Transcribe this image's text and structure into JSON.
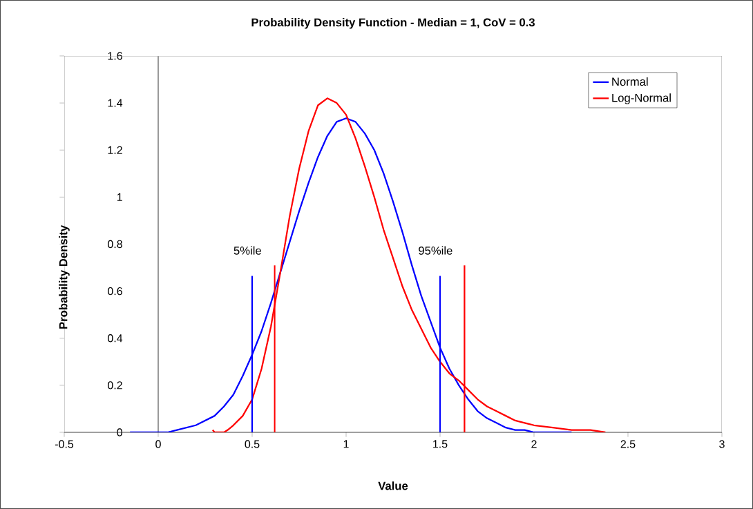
{
  "chart_data": {
    "type": "line",
    "title": "Probability Density Function - Median = 1, CoV = 0.3",
    "xlabel": "Value",
    "ylabel": "Probability Density",
    "xlim": [
      -0.5,
      3
    ],
    "xticks": [
      -0.5,
      0,
      0.5,
      1,
      1.5,
      2,
      2.5,
      3
    ],
    "ylim": [
      0,
      1.6
    ],
    "yticks": [
      0,
      0.2,
      0.4,
      0.6,
      0.8,
      1,
      1.2,
      1.4,
      1.6
    ],
    "legend": "top right",
    "series": [
      {
        "name": "Normal",
        "color": "#0000ff",
        "x": [
          -0.15,
          0.05,
          0.1,
          0.2,
          0.3,
          0.35,
          0.4,
          0.45,
          0.5,
          0.55,
          0.6,
          0.65,
          0.7,
          0.75,
          0.8,
          0.85,
          0.9,
          0.95,
          1.0,
          1.05,
          1.1,
          1.15,
          1.2,
          1.25,
          1.3,
          1.35,
          1.4,
          1.45,
          1.5,
          1.55,
          1.6,
          1.65,
          1.7,
          1.75,
          1.8,
          1.85,
          1.9,
          1.95,
          2.0,
          2.2
        ],
        "values": [
          0,
          0,
          0.01,
          0.03,
          0.07,
          0.11,
          0.16,
          0.24,
          0.33,
          0.43,
          0.55,
          0.68,
          0.81,
          0.94,
          1.06,
          1.17,
          1.26,
          1.32,
          1.335,
          1.32,
          1.27,
          1.2,
          1.1,
          0.98,
          0.85,
          0.71,
          0.58,
          0.47,
          0.36,
          0.27,
          0.2,
          0.14,
          0.09,
          0.06,
          0.04,
          0.02,
          0.01,
          0.01,
          0,
          0
        ]
      },
      {
        "name": "Log-Normal",
        "color": "#ff0000",
        "x": [
          0.29,
          0.3,
          0.35,
          0.37,
          0.4,
          0.45,
          0.5,
          0.55,
          0.6,
          0.65,
          0.7,
          0.75,
          0.8,
          0.85,
          0.9,
          0.95,
          1.0,
          1.05,
          1.1,
          1.15,
          1.2,
          1.25,
          1.3,
          1.35,
          1.4,
          1.45,
          1.5,
          1.55,
          1.6,
          1.65,
          1.7,
          1.75,
          1.8,
          1.85,
          1.9,
          1.95,
          2.0,
          2.1,
          2.2,
          2.3,
          2.38
        ],
        "values": [
          0.01,
          0,
          0,
          0.01,
          0.03,
          0.07,
          0.14,
          0.27,
          0.45,
          0.68,
          0.92,
          1.12,
          1.28,
          1.39,
          1.42,
          1.4,
          1.35,
          1.25,
          1.13,
          1.0,
          0.86,
          0.74,
          0.62,
          0.52,
          0.44,
          0.36,
          0.3,
          0.25,
          0.22,
          0.18,
          0.14,
          0.11,
          0.09,
          0.07,
          0.05,
          0.04,
          0.03,
          0.02,
          0.01,
          0.01,
          0
        ]
      },
      {
        "color": "#0000ff",
        "x": [
          0.5,
          0.5
        ],
        "values": [
          0,
          0.665
        ]
      },
      {
        "color": "#ff0000",
        "x": [
          0.62,
          0.62
        ],
        "values": [
          0,
          0.71
        ]
      },
      {
        "color": "#0000ff",
        "x": [
          1.5,
          1.5
        ],
        "values": [
          0,
          0.665
        ]
      },
      {
        "color": "#ff0000",
        "x": [
          1.63,
          1.63
        ],
        "values": [
          0,
          0.71
        ]
      }
    ],
    "annotations": [
      "5%ile",
      "95%ile"
    ]
  }
}
